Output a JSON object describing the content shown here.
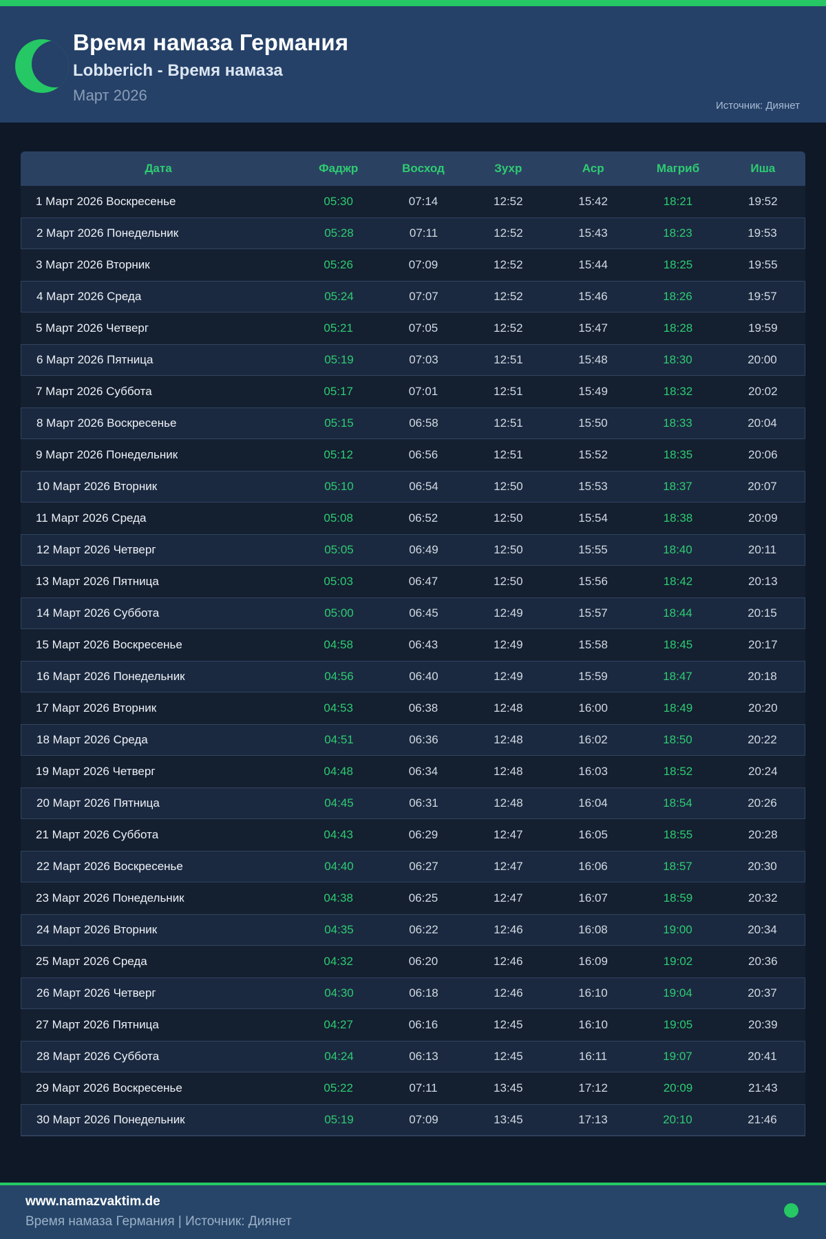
{
  "header": {
    "title": "Время намаза Германия",
    "subtitle": "Lobberich - Время намаза",
    "month": "Март 2026",
    "source": "Источник: Диянет"
  },
  "colors": {
    "accent_green": "#25c864",
    "text_green": "#2ecc71",
    "header_navy": "#254168",
    "table_header_bg": "#2b4162",
    "row_even_bg": "#1b2940",
    "row_odd_bg": "#141f30",
    "page_bg": "#0e1827",
    "footer_bg": "#264569"
  },
  "icons": {
    "crescent_moon": "crescent-moon-icon",
    "status_dot": "status-dot"
  },
  "table": {
    "columns": [
      "Дата",
      "Фаджр",
      "Восход",
      "Зухр",
      "Аср",
      "Магриб",
      "Иша"
    ],
    "green_columns": [
      "Фаджр",
      "Магриб"
    ],
    "rows": [
      {
        "date": "1 Март 2026 Воскресенье",
        "times": [
          "05:30",
          "07:14",
          "12:52",
          "15:42",
          "18:21",
          "19:52"
        ]
      },
      {
        "date": "2 Март 2026 Понедельник",
        "times": [
          "05:28",
          "07:11",
          "12:52",
          "15:43",
          "18:23",
          "19:53"
        ]
      },
      {
        "date": "3 Март 2026 Вторник",
        "times": [
          "05:26",
          "07:09",
          "12:52",
          "15:44",
          "18:25",
          "19:55"
        ]
      },
      {
        "date": "4 Март 2026 Среда",
        "times": [
          "05:24",
          "07:07",
          "12:52",
          "15:46",
          "18:26",
          "19:57"
        ]
      },
      {
        "date": "5 Март 2026 Четверг",
        "times": [
          "05:21",
          "07:05",
          "12:52",
          "15:47",
          "18:28",
          "19:59"
        ]
      },
      {
        "date": "6 Март 2026 Пятница",
        "times": [
          "05:19",
          "07:03",
          "12:51",
          "15:48",
          "18:30",
          "20:00"
        ]
      },
      {
        "date": "7 Март 2026 Суббота",
        "times": [
          "05:17",
          "07:01",
          "12:51",
          "15:49",
          "18:32",
          "20:02"
        ]
      },
      {
        "date": "8 Март 2026 Воскресенье",
        "times": [
          "05:15",
          "06:58",
          "12:51",
          "15:50",
          "18:33",
          "20:04"
        ]
      },
      {
        "date": "9 Март 2026 Понедельник",
        "times": [
          "05:12",
          "06:56",
          "12:51",
          "15:52",
          "18:35",
          "20:06"
        ]
      },
      {
        "date": "10 Март 2026 Вторник",
        "times": [
          "05:10",
          "06:54",
          "12:50",
          "15:53",
          "18:37",
          "20:07"
        ]
      },
      {
        "date": "11 Март 2026 Среда",
        "times": [
          "05:08",
          "06:52",
          "12:50",
          "15:54",
          "18:38",
          "20:09"
        ]
      },
      {
        "date": "12 Март 2026 Четверг",
        "times": [
          "05:05",
          "06:49",
          "12:50",
          "15:55",
          "18:40",
          "20:11"
        ]
      },
      {
        "date": "13 Март 2026 Пятница",
        "times": [
          "05:03",
          "06:47",
          "12:50",
          "15:56",
          "18:42",
          "20:13"
        ]
      },
      {
        "date": "14 Март 2026 Суббота",
        "times": [
          "05:00",
          "06:45",
          "12:49",
          "15:57",
          "18:44",
          "20:15"
        ]
      },
      {
        "date": "15 Март 2026 Воскресенье",
        "times": [
          "04:58",
          "06:43",
          "12:49",
          "15:58",
          "18:45",
          "20:17"
        ]
      },
      {
        "date": "16 Март 2026 Понедельник",
        "times": [
          "04:56",
          "06:40",
          "12:49",
          "15:59",
          "18:47",
          "20:18"
        ]
      },
      {
        "date": "17 Март 2026 Вторник",
        "times": [
          "04:53",
          "06:38",
          "12:48",
          "16:00",
          "18:49",
          "20:20"
        ]
      },
      {
        "date": "18 Март 2026 Среда",
        "times": [
          "04:51",
          "06:36",
          "12:48",
          "16:02",
          "18:50",
          "20:22"
        ]
      },
      {
        "date": "19 Март 2026 Четверг",
        "times": [
          "04:48",
          "06:34",
          "12:48",
          "16:03",
          "18:52",
          "20:24"
        ]
      },
      {
        "date": "20 Март 2026 Пятница",
        "times": [
          "04:45",
          "06:31",
          "12:48",
          "16:04",
          "18:54",
          "20:26"
        ]
      },
      {
        "date": "21 Март 2026 Суббота",
        "times": [
          "04:43",
          "06:29",
          "12:47",
          "16:05",
          "18:55",
          "20:28"
        ]
      },
      {
        "date": "22 Март 2026 Воскресенье",
        "times": [
          "04:40",
          "06:27",
          "12:47",
          "16:06",
          "18:57",
          "20:30"
        ]
      },
      {
        "date": "23 Март 2026 Понедельник",
        "times": [
          "04:38",
          "06:25",
          "12:47",
          "16:07",
          "18:59",
          "20:32"
        ]
      },
      {
        "date": "24 Март 2026 Вторник",
        "times": [
          "04:35",
          "06:22",
          "12:46",
          "16:08",
          "19:00",
          "20:34"
        ]
      },
      {
        "date": "25 Март 2026 Среда",
        "times": [
          "04:32",
          "06:20",
          "12:46",
          "16:09",
          "19:02",
          "20:36"
        ]
      },
      {
        "date": "26 Март 2026 Четверг",
        "times": [
          "04:30",
          "06:18",
          "12:46",
          "16:10",
          "19:04",
          "20:37"
        ]
      },
      {
        "date": "27 Март 2026 Пятница",
        "times": [
          "04:27",
          "06:16",
          "12:45",
          "16:10",
          "19:05",
          "20:39"
        ]
      },
      {
        "date": "28 Март 2026 Суббота",
        "times": [
          "04:24",
          "06:13",
          "12:45",
          "16:11",
          "19:07",
          "20:41"
        ]
      },
      {
        "date": "29 Март 2026 Воскресенье",
        "times": [
          "05:22",
          "07:11",
          "13:45",
          "17:12",
          "20:09",
          "21:43"
        ]
      },
      {
        "date": "30 Март 2026 Понедельник",
        "times": [
          "05:19",
          "07:09",
          "13:45",
          "17:13",
          "20:10",
          "21:46"
        ]
      }
    ]
  },
  "footer": {
    "site": "www.namazvaktim.de",
    "tagline": "Время намаза Германия | Источник: Диянет"
  }
}
